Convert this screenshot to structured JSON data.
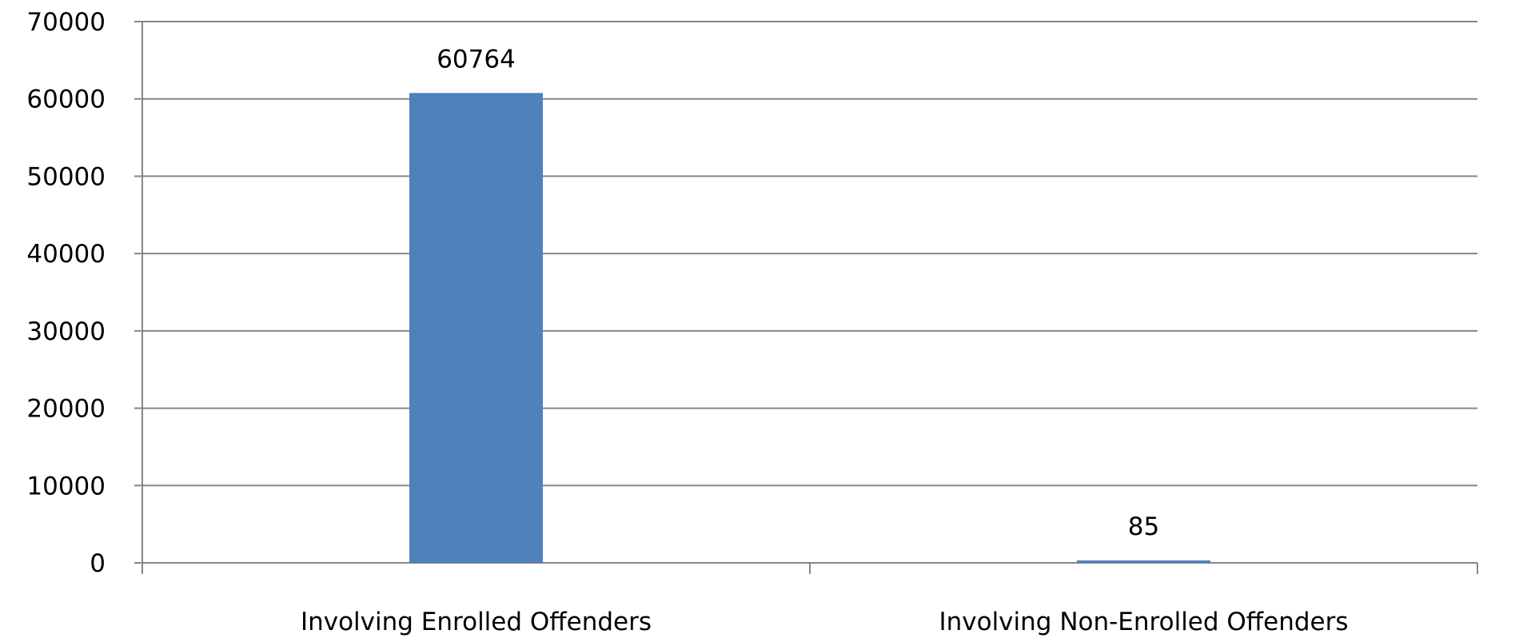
{
  "chart_data": {
    "type": "bar",
    "title": "",
    "xlabel": "",
    "ylabel": "",
    "categories": [
      "Involving Enrolled Offenders",
      "Involving Non-Enrolled Offenders"
    ],
    "values": [
      60764,
      85
    ],
    "data_labels": [
      "60764",
      "85"
    ],
    "ylim": [
      0,
      70000
    ],
    "yticks": [
      0,
      10000,
      20000,
      30000,
      40000,
      50000,
      60000,
      70000
    ],
    "ytick_labels": [
      "0",
      "10000",
      "20000",
      "30000",
      "40000",
      "50000",
      "60000",
      "70000"
    ],
    "grid": true,
    "legend": "none",
    "bar_color": "#4F81BD",
    "grid_color": "#868686"
  }
}
